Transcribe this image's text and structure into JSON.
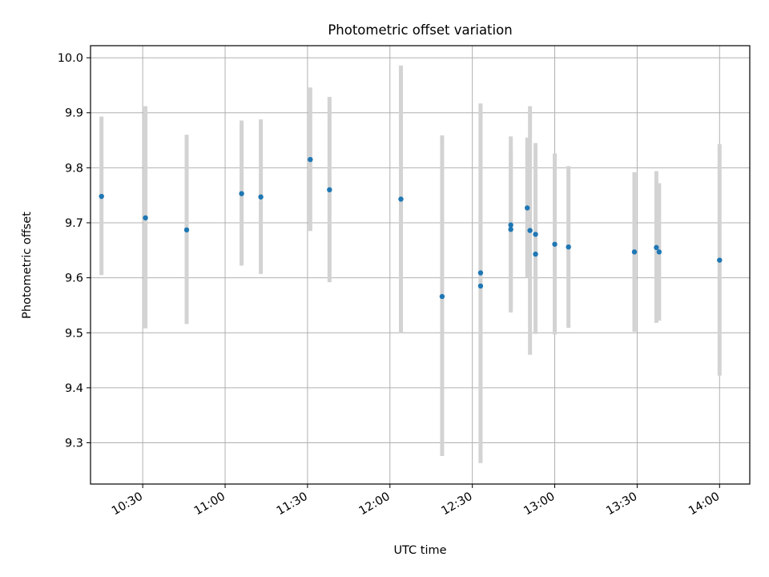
{
  "chart_data": {
    "type": "scatter",
    "title": "Photometric offset variation",
    "xlabel": "UTC time",
    "ylabel": "Photometric offset",
    "x_tick_labels": [
      "10:30",
      "11:00",
      "11:30",
      "12:00",
      "12:30",
      "13:00",
      "13:30",
      "14:00"
    ],
    "y_tick_labels": [
      "9.3",
      "9.4",
      "9.5",
      "9.6",
      "9.7",
      "9.8",
      "9.9",
      "10.0"
    ],
    "xlim": [
      "10:11",
      "14:11"
    ],
    "ylim": [
      9.225,
      10.022
    ],
    "grid": true,
    "colors": {
      "point": "#1f77b4",
      "errorbar": "#d3d3d3",
      "grid": "#b0b0b0"
    },
    "series": [
      {
        "points": [
          {
            "x": "10:15",
            "y": 9.748,
            "yerr": [
              9.605,
              9.893
            ]
          },
          {
            "x": "10:31",
            "y": 9.709,
            "yerr": [
              9.508,
              9.912
            ]
          },
          {
            "x": "10:46",
            "y": 9.687,
            "yerr": [
              9.516,
              9.86
            ]
          },
          {
            "x": "11:06",
            "y": 9.753,
            "yerr": [
              9.622,
              9.886
            ]
          },
          {
            "x": "11:13",
            "y": 9.747,
            "yerr": [
              9.607,
              9.888
            ]
          },
          {
            "x": "11:31",
            "y": 9.815,
            "yerr": [
              9.685,
              9.946
            ]
          },
          {
            "x": "11:38",
            "y": 9.76,
            "yerr": [
              9.592,
              9.929
            ]
          },
          {
            "x": "12:04",
            "y": 9.743,
            "yerr": [
              9.5,
              9.986
            ]
          },
          {
            "x": "12:19",
            "y": 9.566,
            "yerr": [
              9.276,
              9.859
            ]
          },
          {
            "x": "12:33",
            "y": 9.609,
            "yerr": [
              9.3,
              9.917
            ]
          },
          {
            "x": "12:33",
            "y": 9.585,
            "yerr": [
              9.263,
              9.905
            ]
          },
          {
            "x": "12:44",
            "y": 9.688,
            "yerr": [
              9.545,
              9.832
            ]
          },
          {
            "x": "12:44",
            "y": 9.696,
            "yerr": [
              9.537,
              9.857
            ]
          },
          {
            "x": "12:50",
            "y": 9.727,
            "yerr": [
              9.6,
              9.855
            ]
          },
          {
            "x": "12:51",
            "y": 9.686,
            "yerr": [
              9.46,
              9.912
            ]
          },
          {
            "x": "12:53",
            "y": 9.679,
            "yerr": [
              9.512,
              9.845
            ]
          },
          {
            "x": "12:53",
            "y": 9.643,
            "yerr": [
              9.498,
              9.786
            ]
          },
          {
            "x": "13:00",
            "y": 9.661,
            "yerr": [
              9.497,
              9.826
            ]
          },
          {
            "x": "13:05",
            "y": 9.656,
            "yerr": [
              9.509,
              9.803
            ]
          },
          {
            "x": "13:29",
            "y": 9.647,
            "yerr": [
              9.502,
              9.792
            ]
          },
          {
            "x": "13:37",
            "y": 9.655,
            "yerr": [
              9.518,
              9.794
            ]
          },
          {
            "x": "13:38",
            "y": 9.647,
            "yerr": [
              9.522,
              9.772
            ]
          },
          {
            "x": "14:00",
            "y": 9.632,
            "yerr": [
              9.422,
              9.843
            ]
          }
        ]
      }
    ]
  }
}
